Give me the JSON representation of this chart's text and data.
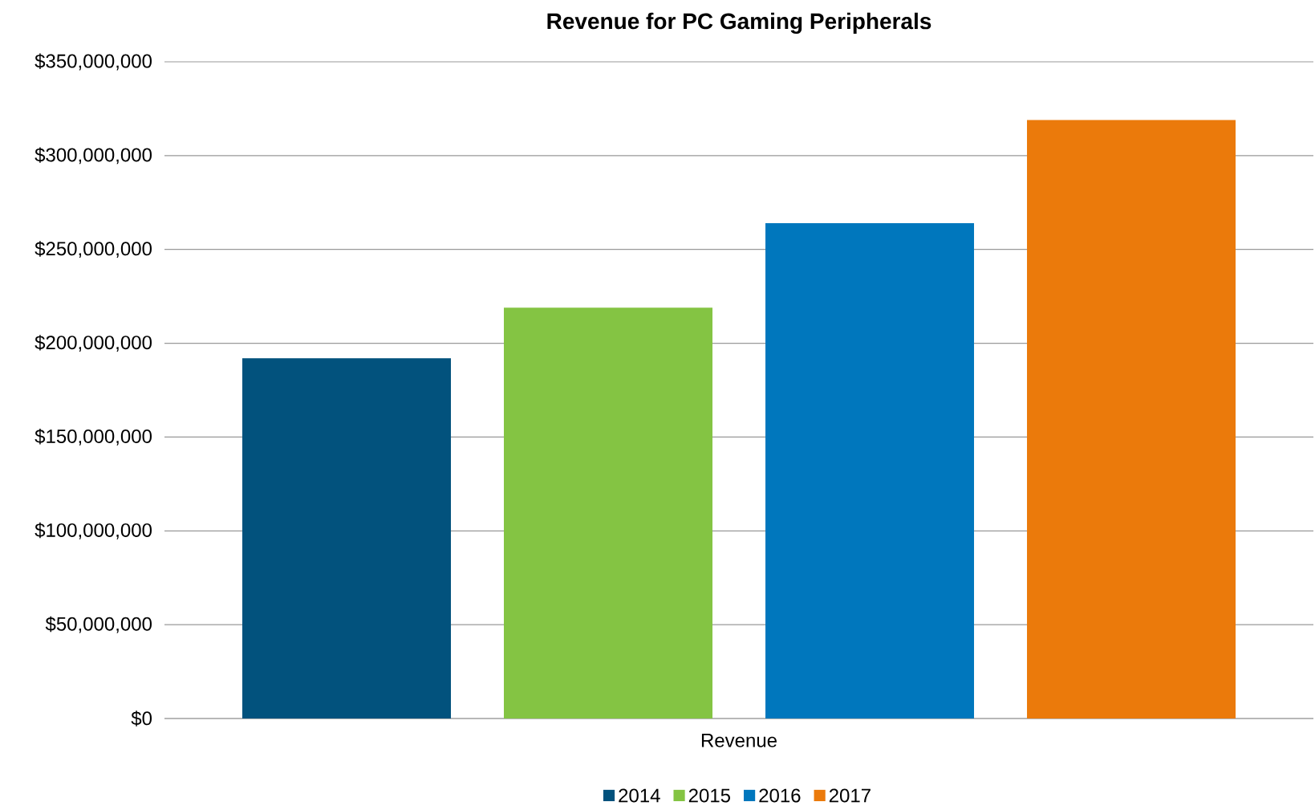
{
  "chart_data": {
    "type": "bar",
    "title": "Revenue for PC Gaming Peripherals",
    "categories": [
      "Revenue"
    ],
    "series": [
      {
        "name": "2014",
        "color": "#02527d",
        "values": [
          192000000
        ]
      },
      {
        "name": "2015",
        "color": "#84c443",
        "values": [
          219000000
        ]
      },
      {
        "name": "2016",
        "color": "#0077bd",
        "values": [
          264000000
        ]
      },
      {
        "name": "2017",
        "color": "#eb7a0b",
        "values": [
          319000000
        ]
      }
    ],
    "ylim": [
      0,
      350000000
    ],
    "yticks": [
      {
        "value": 0,
        "label": "$0"
      },
      {
        "value": 50000000,
        "label": "$50,000,000"
      },
      {
        "value": 100000000,
        "label": "$100,000,000"
      },
      {
        "value": 150000000,
        "label": "$150,000,000"
      },
      {
        "value": 200000000,
        "label": "$200,000,000"
      },
      {
        "value": 250000000,
        "label": "$250,000,000"
      },
      {
        "value": 300000000,
        "label": "$300,000,000"
      },
      {
        "value": 350000000,
        "label": "$350,000,000"
      }
    ],
    "grid": "y",
    "legend": "bottom"
  }
}
